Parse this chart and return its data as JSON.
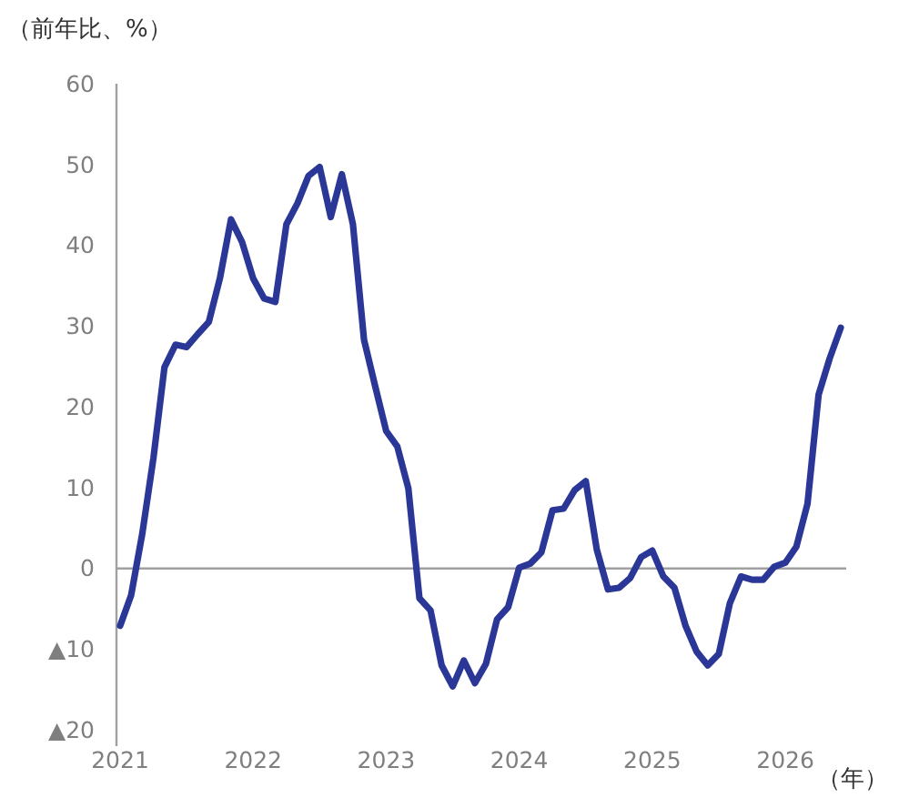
{
  "chart_data": {
    "type": "line",
    "ylabel": "（前年比、%）",
    "xlabel": "（年）",
    "categories": [
      "2021",
      null,
      null,
      null,
      null,
      null,
      null,
      null,
      null,
      null,
      null,
      null,
      "2022",
      null,
      null,
      null,
      null,
      null,
      null,
      null,
      null,
      null,
      null,
      null,
      "2023",
      null,
      null,
      null,
      null,
      null,
      null,
      null,
      null,
      null,
      null,
      null,
      "2024",
      null,
      null,
      null,
      null,
      null,
      null,
      null,
      null,
      null,
      null,
      null,
      "2025",
      null,
      null,
      null,
      null,
      null,
      null,
      null,
      null,
      null,
      null,
      null,
      "2026",
      null,
      null,
      null,
      null,
      null
    ],
    "series": [
      {
        "color": "#2b3797",
        "values": [
          -7.1,
          -3.3,
          4.3,
          13.6,
          24.9,
          27.7,
          27.4,
          29,
          30.5,
          35.9,
          43.2,
          40.4,
          35.9,
          33.4,
          33.0,
          42.6,
          45.2,
          48.6,
          49.7,
          43.5,
          48.8,
          42.6,
          28.3,
          22.6,
          17.0,
          15.1,
          9.9,
          -3.7,
          -5.2,
          -12.0,
          -14.6,
          -11.4,
          -14.2,
          -11.8,
          -6.3,
          -4.8,
          0.1,
          0.6,
          2.0,
          7.2,
          7.4,
          9.7,
          10.8,
          2.3,
          -2.6,
          -2.4,
          -1.2,
          1.4,
          2.2,
          -1.0,
          -2.4,
          -7.1,
          -10.3,
          -12.0,
          -10.6,
          -4.3,
          -1.0,
          -1.4,
          -1.4,
          0.2,
          0.7,
          2.7,
          8.0,
          21.5,
          26.0,
          29.8
        ]
      }
    ],
    "ylim": [
      -22,
      60
    ],
    "ref_lines": [
      {
        "axis": "y",
        "value": 0,
        "color": "#a0a0a0"
      }
    ],
    "yticks": [
      {
        "value": -20,
        "label": "▲20"
      },
      {
        "value": -10,
        "label": "▲10"
      },
      0,
      10,
      20,
      30,
      40,
      50,
      60
    ],
    "marker": "none",
    "line_style": "solid"
  }
}
